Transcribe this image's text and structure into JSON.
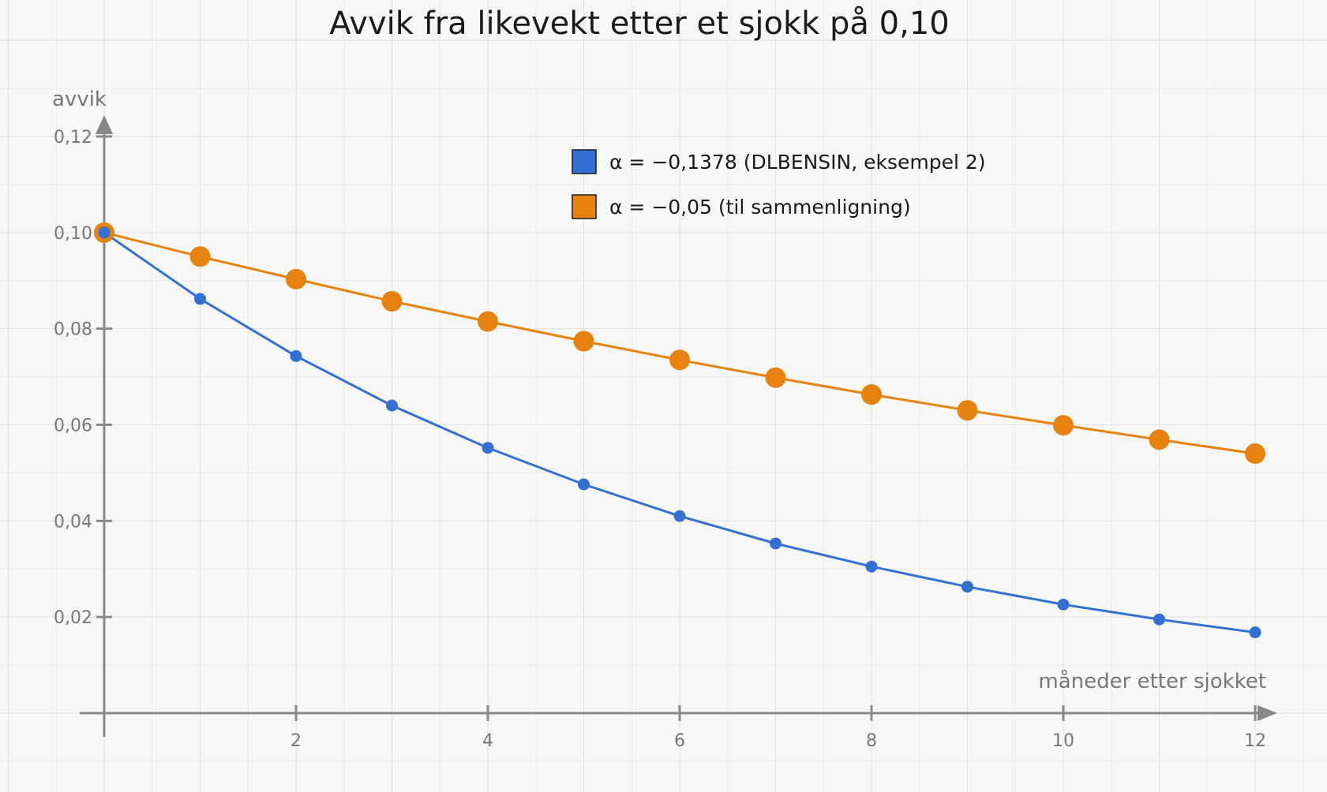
{
  "chart_data": {
    "type": "line",
    "title": "Avvik fra likevekt etter et sjokk på 0,10",
    "xlabel": "måneder etter sjokket",
    "ylabel": "avvik",
    "xlim": [
      0,
      12
    ],
    "ylim": [
      0,
      0.12
    ],
    "x_ticks": [
      2,
      4,
      6,
      8,
      10,
      12
    ],
    "y_ticks": [
      0.02,
      0.04,
      0.06,
      0.08,
      0.1,
      0.12
    ],
    "x_tick_labels": [
      "2",
      "4",
      "6",
      "8",
      "10",
      "12"
    ],
    "y_tick_labels": [
      "0,02",
      "0,04",
      "0,06",
      "0,08",
      "0,10",
      "0,12"
    ],
    "grid": true,
    "legend_position": "top-center",
    "x": [
      0,
      1,
      2,
      3,
      4,
      5,
      6,
      7,
      8,
      9,
      10,
      11,
      12
    ],
    "series": [
      {
        "name": "α = −0,1378 (DLBENSIN, eksempel 2)",
        "color": "#3370d4",
        "values": [
          0.1,
          0.0862,
          0.0743,
          0.064,
          0.0552,
          0.0476,
          0.041,
          0.0353,
          0.0305,
          0.0263,
          0.0226,
          0.0195,
          0.0168
        ]
      },
      {
        "name": "α = −0,05 (til sammenligning)",
        "color": "#e8820e",
        "values": [
          0.1,
          0.095,
          0.0903,
          0.0857,
          0.0815,
          0.0774,
          0.0735,
          0.0698,
          0.0663,
          0.063,
          0.0599,
          0.0569,
          0.054
        ]
      }
    ]
  }
}
